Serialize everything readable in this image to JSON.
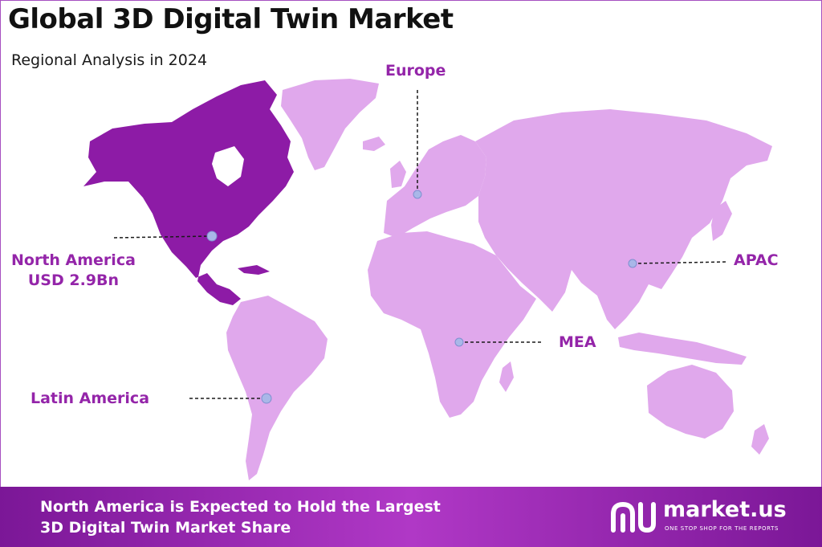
{
  "header": {
    "title": "Global 3D Digital Twin Market",
    "subtitle": "Regional Analysis in 2024"
  },
  "colors": {
    "highlight_region": "#8d1ba6",
    "other_regions": "#e0a8ec",
    "label_text": "#9425a9",
    "marker": "#a9b7e8",
    "footer_start": "#7b1797",
    "footer_end": "#b038c6"
  },
  "regions": [
    {
      "id": "north-america",
      "name": "North America",
      "value": "USD 2.9Bn",
      "highlighted": true
    },
    {
      "id": "europe",
      "name": "Europe"
    },
    {
      "id": "apac",
      "name": "APAC"
    },
    {
      "id": "mea",
      "name": "MEA"
    },
    {
      "id": "latin-america",
      "name": "Latin America"
    }
  ],
  "footer": {
    "line1": "North America is Expected to Hold the Largest",
    "line2": "3D Digital Twin Market Share"
  },
  "logo": {
    "name": "market.us",
    "tagline": "ONE STOP SHOP FOR THE REPORTS"
  }
}
